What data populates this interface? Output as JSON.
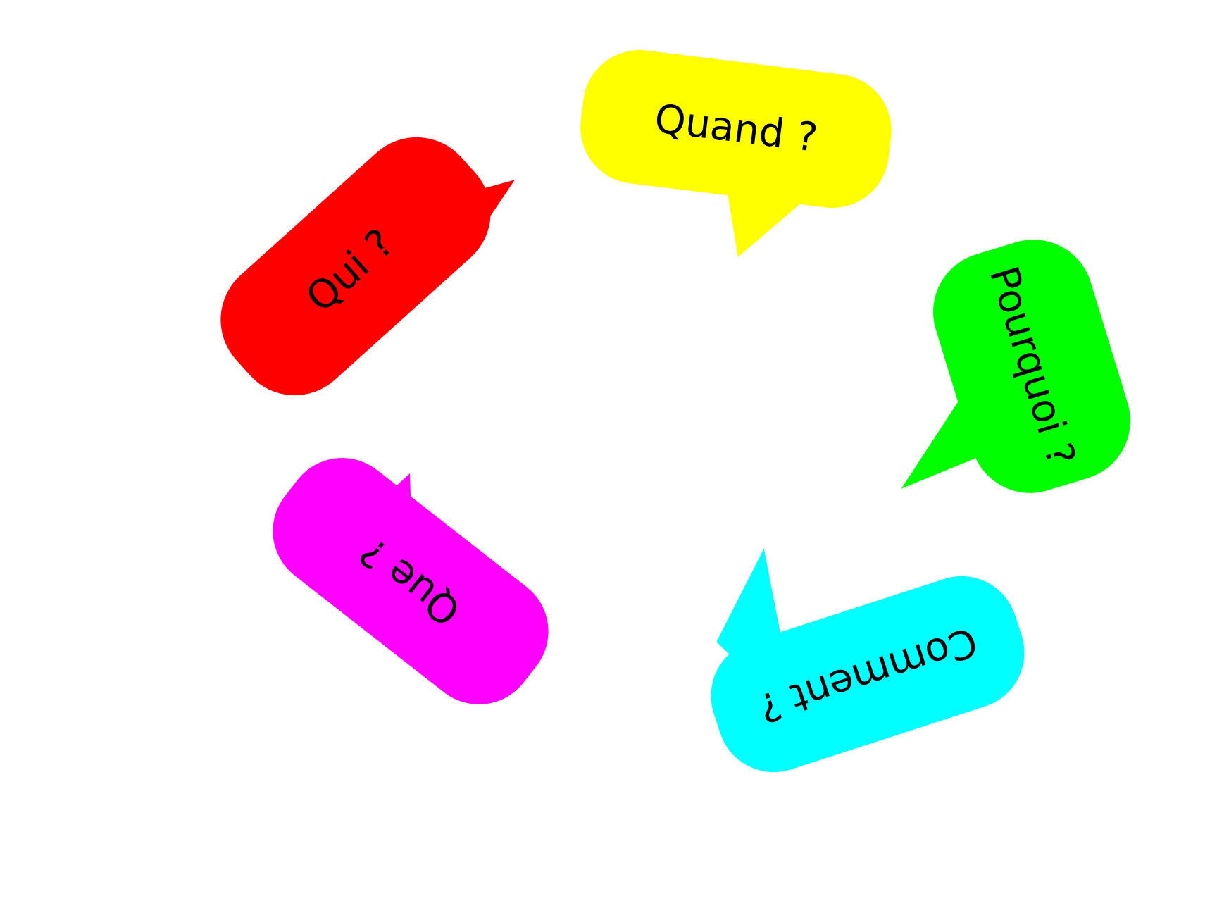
{
  "bubbles": [
    {
      "id": "quand",
      "label": "Quand ?",
      "color": "#ffff00"
    },
    {
      "id": "qui",
      "label": "Qui ?",
      "color": "#ff0000"
    },
    {
      "id": "pourquoi",
      "label": "Pourquoi ?",
      "color": "#00ff00"
    },
    {
      "id": "que",
      "label": "Que ?",
      "color": "#ff00ff"
    },
    {
      "id": "comment",
      "label": "Comment ?",
      "color": "#00ffff"
    }
  ]
}
